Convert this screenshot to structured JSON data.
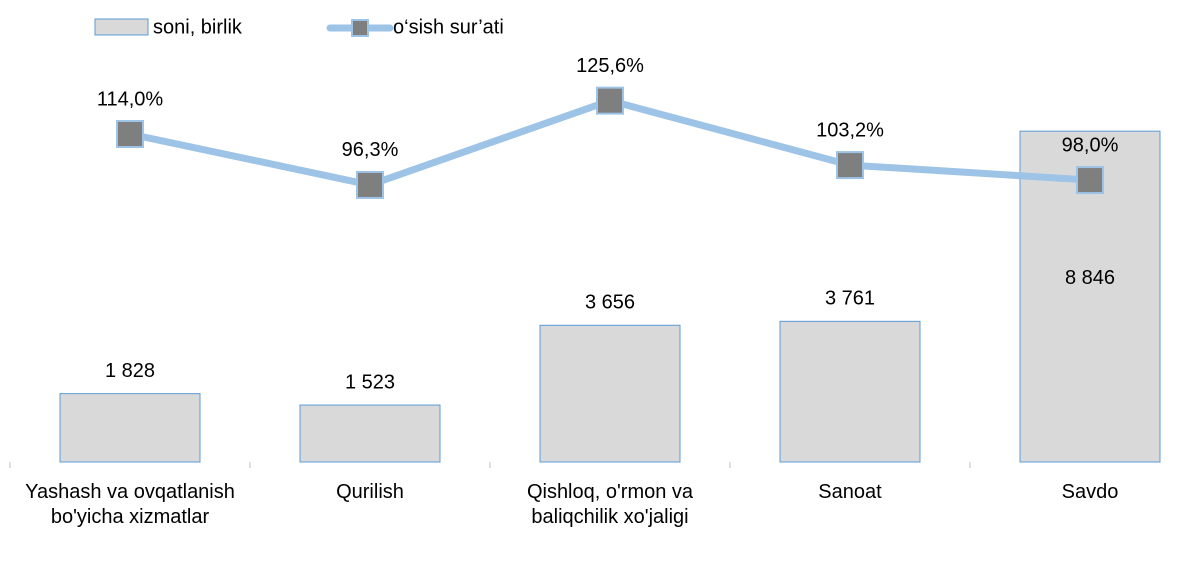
{
  "chart_data": {
    "type": "bar_line",
    "categories": [
      "Yashash va ovqatlanish bo'yicha xizmatlar",
      "Qurilish",
      "Qishloq, o'rmon va baliqchilik xo'jaligi",
      "Sanoat",
      "Savdo"
    ],
    "ylim": [
      0,
      10000
    ],
    "y2lim": [
      0,
      130
    ],
    "series": [
      {
        "name": "soni,  birlik",
        "type": "bar",
        "color": "#d9d9d9",
        "edge_color": "#5b9bd5",
        "values": [
          1828,
          1523,
          3656,
          3761,
          8846
        ],
        "value_labels": [
          "1 828",
          "1 523",
          "3 656",
          "3 761",
          "8 846"
        ]
      },
      {
        "name": "o‘sish sur’ati",
        "type": "line",
        "axis": "y2",
        "color": "#9dc3e6",
        "marker_color": "#7f7f7f",
        "values": [
          114.0,
          96.3,
          125.6,
          103.2,
          98.0
        ],
        "value_labels": [
          "114,0%",
          "96,3%",
          "125,6%",
          "103,2%",
          "98,0%"
        ]
      }
    ]
  }
}
